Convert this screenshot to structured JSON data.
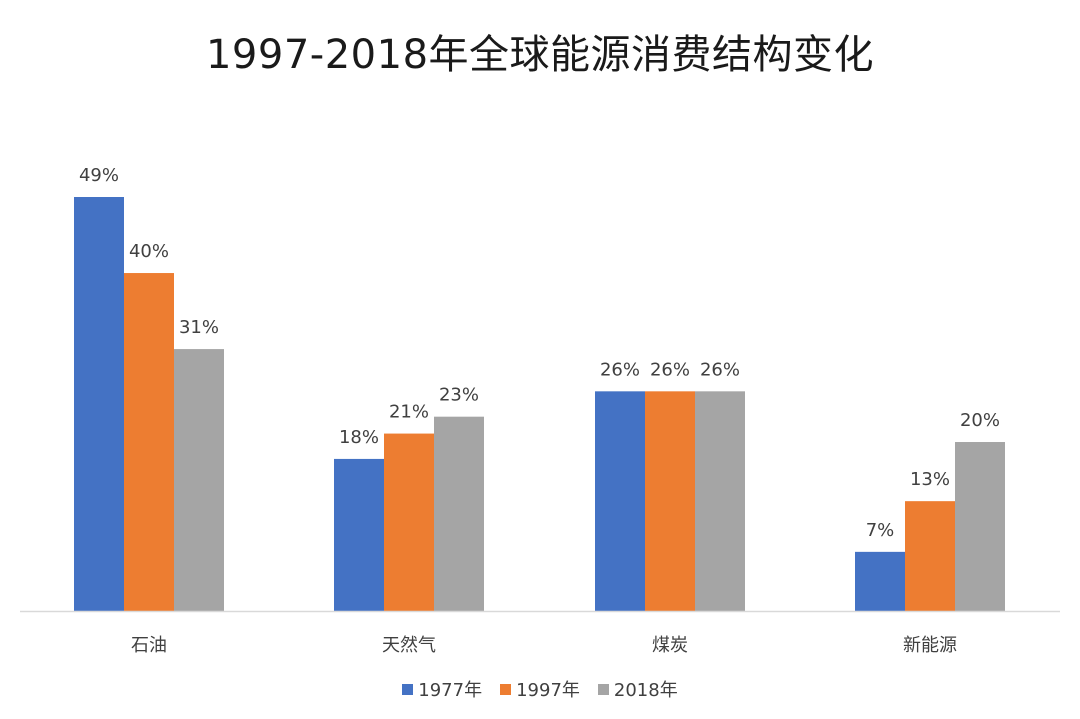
{
  "chart_data": {
    "type": "bar",
    "title": "1997-2018年全球能源消费结构变化",
    "categories": [
      "石油",
      "天然气",
      "煤炭",
      "新能源"
    ],
    "series": [
      {
        "name": "1977年",
        "values": [
          49,
          18,
          26,
          7
        ],
        "labels": [
          "49%",
          "18%",
          "26%",
          "7%"
        ],
        "color": "#4472C4"
      },
      {
        "name": "1997年",
        "values": [
          40,
          21,
          26,
          13
        ],
        "labels": [
          "40%",
          "21%",
          "26%",
          "13%"
        ],
        "color": "#ED7D31"
      },
      {
        "name": "2018年",
        "values": [
          31,
          23,
          26,
          20
        ],
        "labels": [
          "31%",
          "23%",
          "26%",
          "20%"
        ],
        "color": "#A5A5A5"
      }
    ],
    "xlabel": "",
    "ylabel": "",
    "ylim": [
      0,
      49
    ],
    "unit": "%",
    "grid": false,
    "legend_position": "bottom"
  },
  "colors": {
    "axis": "#d9d9d9",
    "text": "#404040"
  }
}
